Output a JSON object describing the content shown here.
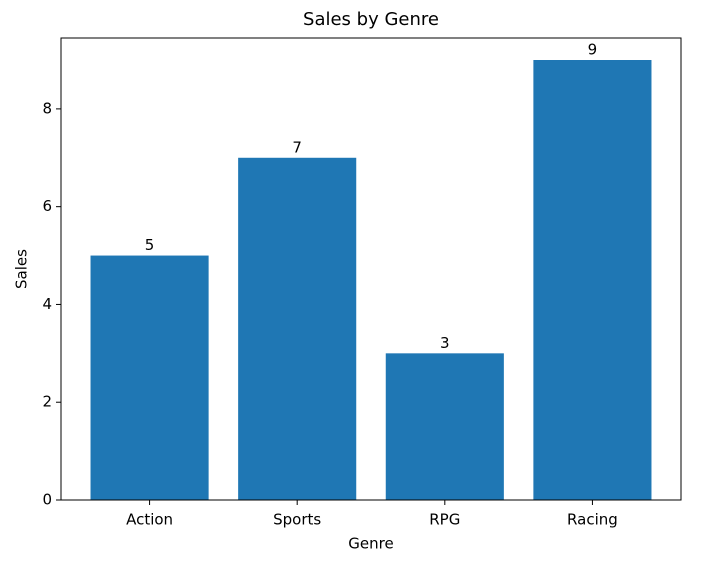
{
  "chart_data": {
    "type": "bar",
    "title": "Sales by Genre",
    "x_label": "Genre",
    "y_label": "Sales",
    "categories": [
      "Action",
      "Sports",
      "RPG",
      "Racing"
    ],
    "values": [
      5,
      7,
      3,
      9
    ],
    "color": "#1f77b4",
    "ylim": [
      0,
      9.45
    ],
    "yticks": [
      0,
      2,
      4,
      6,
      8
    ],
    "grid": false,
    "data_labels": true
  }
}
